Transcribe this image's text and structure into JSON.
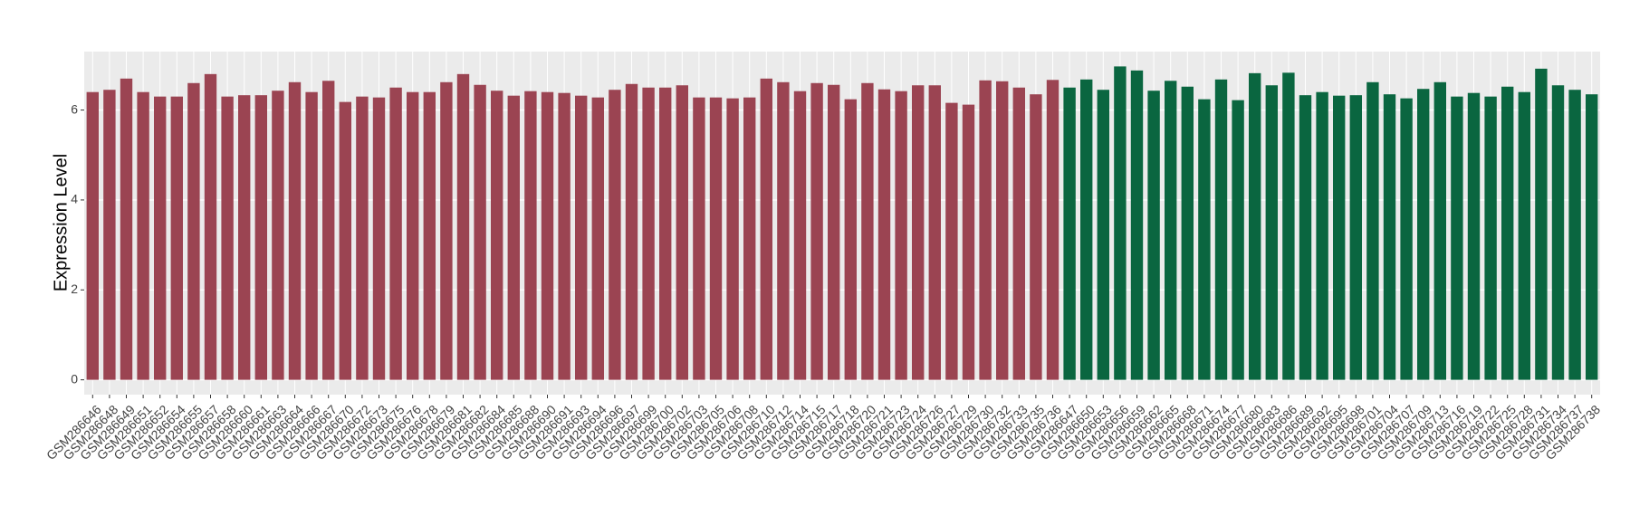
{
  "chart_data": {
    "type": "bar",
    "y_label": "Expression Level",
    "categories": [
      "GSM286646",
      "GSM286648",
      "GSM286649",
      "GSM286651",
      "GSM286652",
      "GSM286654",
      "GSM286655",
      "GSM286657",
      "GSM286658",
      "GSM286660",
      "GSM286661",
      "GSM286663",
      "GSM286664",
      "GSM286666",
      "GSM286667",
      "GSM286670",
      "GSM286672",
      "GSM286673",
      "GSM286675",
      "GSM286676",
      "GSM286678",
      "GSM286679",
      "GSM286681",
      "GSM286682",
      "GSM286684",
      "GSM286685",
      "GSM286688",
      "GSM286690",
      "GSM286691",
      "GSM286693",
      "GSM286694",
      "GSM286696",
      "GSM286697",
      "GSM286699",
      "GSM286700",
      "GSM286702",
      "GSM286703",
      "GSM286705",
      "GSM286706",
      "GSM286708",
      "GSM286710",
      "GSM286712",
      "GSM286714",
      "GSM286715",
      "GSM286717",
      "GSM286718",
      "GSM286720",
      "GSM286721",
      "GSM286723",
      "GSM286724",
      "GSM286726",
      "GSM286727",
      "GSM286729",
      "GSM286730",
      "GSM286732",
      "GSM286733",
      "GSM286735",
      "GSM286736",
      "GSM286647",
      "GSM286650",
      "GSM286653",
      "GSM286656",
      "GSM286659",
      "GSM286662",
      "GSM286665",
      "GSM286668",
      "GSM286671",
      "GSM286674",
      "GSM286677",
      "GSM286680",
      "GSM286683",
      "GSM286686",
      "GSM286689",
      "GSM286692",
      "GSM286695",
      "GSM286698",
      "GSM286701",
      "GSM286704",
      "GSM286707",
      "GSM286709",
      "GSM286713",
      "GSM286716",
      "GSM286719",
      "GSM286722",
      "GSM286725",
      "GSM286728",
      "GSM286731",
      "GSM286734",
      "GSM286737",
      "GSM286738"
    ],
    "values": [
      6.4,
      6.45,
      6.7,
      6.4,
      6.3,
      6.3,
      6.6,
      6.8,
      6.3,
      6.33,
      6.33,
      6.43,
      6.62,
      6.4,
      6.65,
      6.18,
      6.3,
      6.28,
      6.5,
      6.4,
      6.4,
      6.62,
      6.8,
      6.56,
      6.43,
      6.32,
      6.42,
      6.4,
      6.38,
      6.32,
      6.28,
      6.45,
      6.58,
      6.5,
      6.5,
      6.55,
      6.28,
      6.28,
      6.26,
      6.28,
      6.7,
      6.62,
      6.42,
      6.6,
      6.56,
      6.24,
      6.6,
      6.46,
      6.42,
      6.55,
      6.55,
      6.16,
      6.12,
      6.66,
      6.64,
      6.5,
      6.35,
      6.67,
      6.5,
      6.68,
      6.45,
      6.97,
      6.88,
      6.43,
      6.65,
      6.52,
      6.24,
      6.68,
      6.22,
      6.82,
      6.55,
      6.83,
      6.33,
      6.4,
      6.32,
      6.33,
      6.62,
      6.35,
      6.26,
      6.47,
      6.62,
      6.3,
      6.38,
      6.3,
      6.52,
      6.4,
      6.92,
      6.55,
      6.45,
      6.35
    ],
    "colors": [
      "#9b4452",
      "#9b4452",
      "#9b4452",
      "#9b4452",
      "#9b4452",
      "#9b4452",
      "#9b4452",
      "#9b4452",
      "#9b4452",
      "#9b4452",
      "#9b4452",
      "#9b4452",
      "#9b4452",
      "#9b4452",
      "#9b4452",
      "#9b4452",
      "#9b4452",
      "#9b4452",
      "#9b4452",
      "#9b4452",
      "#9b4452",
      "#9b4452",
      "#9b4452",
      "#9b4452",
      "#9b4452",
      "#9b4452",
      "#9b4452",
      "#9b4452",
      "#9b4452",
      "#9b4452",
      "#9b4452",
      "#9b4452",
      "#9b4452",
      "#9b4452",
      "#9b4452",
      "#9b4452",
      "#9b4452",
      "#9b4452",
      "#9b4452",
      "#9b4452",
      "#9b4452",
      "#9b4452",
      "#9b4452",
      "#9b4452",
      "#9b4452",
      "#9b4452",
      "#9b4452",
      "#9b4452",
      "#9b4452",
      "#9b4452",
      "#9b4452",
      "#9b4452",
      "#9b4452",
      "#9b4452",
      "#9b4452",
      "#9b4452",
      "#9b4452",
      "#9b4452",
      "#0a6640",
      "#0a6640",
      "#0a6640",
      "#0a6640",
      "#0a6640",
      "#0a6640",
      "#0a6640",
      "#0a6640",
      "#0a6640",
      "#0a6640",
      "#0a6640",
      "#0a6640",
      "#0a6640",
      "#0a6640",
      "#0a6640",
      "#0a6640",
      "#0a6640",
      "#0a6640",
      "#0a6640",
      "#0a6640",
      "#0a6640",
      "#0a6640",
      "#0a6640",
      "#0a6640",
      "#0a6640",
      "#0a6640",
      "#0a6640",
      "#0a6640",
      "#0a6640",
      "#0a6640",
      "#0a6640",
      "#0a6640",
      "#0a6640",
      "#0a6640"
    ],
    "ylim": [
      -0.33,
      7.3
    ],
    "yticks": [
      0,
      2,
      4,
      6
    ],
    "grid": true
  }
}
